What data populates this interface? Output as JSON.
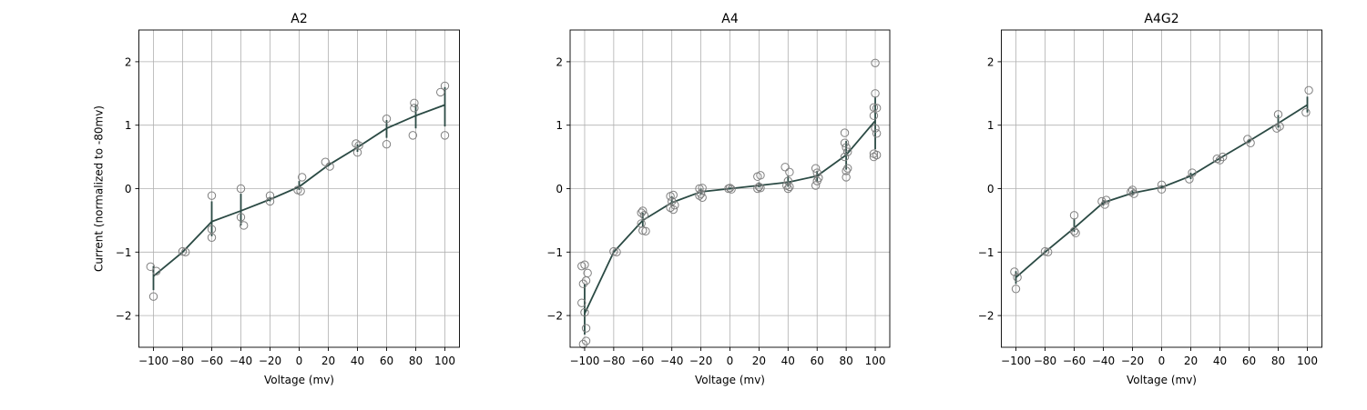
{
  "chart_data": [
    {
      "type": "scatter",
      "title": "A2",
      "xlabel": "Voltage (mv)",
      "ylabel": "Current (normalized to -80mv)",
      "xlim": [
        -110,
        110
      ],
      "ylim": [
        -2.5,
        2.5
      ],
      "xticks": [
        -100,
        -80,
        -60,
        -40,
        -20,
        0,
        20,
        40,
        60,
        80,
        100
      ],
      "xtick_labels": [
        "−100",
        "−80",
        "−60",
        "−40",
        "−20",
        "0",
        "20",
        "40",
        "60",
        "80",
        "100"
      ],
      "yticks": [
        -2,
        -1,
        0,
        1,
        2
      ],
      "ytick_labels": [
        "−2",
        "−1",
        "0",
        "1",
        "2"
      ],
      "grid": true,
      "mean": {
        "x": [
          -100,
          -80,
          -60,
          -40,
          -20,
          0,
          20,
          40,
          60,
          80,
          100
        ],
        "y": [
          -1.38,
          -1.0,
          -0.52,
          -0.35,
          -0.17,
          0.03,
          0.37,
          0.65,
          0.95,
          1.15,
          1.32
        ],
        "err_low": [
          -1.6,
          -1.0,
          -0.75,
          -0.58,
          -0.2,
          -0.02,
          0.35,
          0.58,
          0.8,
          0.95,
          0.98
        ],
        "err_high": [
          -1.22,
          -0.98,
          -0.2,
          -0.08,
          -0.13,
          0.12,
          0.4,
          0.7,
          1.08,
          1.32,
          1.6
        ]
      },
      "points": [
        {
          "x": -102,
          "y": -1.23
        },
        {
          "x": -100,
          "y": -1.7
        },
        {
          "x": -98,
          "y": -1.3
        },
        {
          "x": -80,
          "y": -0.99
        },
        {
          "x": -78,
          "y": -1.0
        },
        {
          "x": -60,
          "y": -0.11
        },
        {
          "x": -60,
          "y": -0.64
        },
        {
          "x": -60,
          "y": -0.77
        },
        {
          "x": -40,
          "y": 0.0
        },
        {
          "x": -40,
          "y": -0.45
        },
        {
          "x": -38,
          "y": -0.58
        },
        {
          "x": -20,
          "y": -0.11
        },
        {
          "x": -20,
          "y": -0.2
        },
        {
          "x": -1,
          "y": -0.02
        },
        {
          "x": 1,
          "y": -0.04
        },
        {
          "x": 2,
          "y": 0.18
        },
        {
          "x": 18,
          "y": 0.42
        },
        {
          "x": 21,
          "y": 0.35
        },
        {
          "x": 39,
          "y": 0.71
        },
        {
          "x": 40,
          "y": 0.57
        },
        {
          "x": 41,
          "y": 0.68
        },
        {
          "x": 60,
          "y": 1.1
        },
        {
          "x": 60,
          "y": 0.7
        },
        {
          "x": 78,
          "y": 0.84
        },
        {
          "x": 79,
          "y": 1.35
        },
        {
          "x": 79,
          "y": 1.27
        },
        {
          "x": 97,
          "y": 1.52
        },
        {
          "x": 100,
          "y": 1.62
        },
        {
          "x": 100,
          "y": 0.84
        }
      ]
    },
    {
      "type": "scatter",
      "title": "A4",
      "xlabel": "Voltage (mv)",
      "ylabel": "",
      "xlim": [
        -110,
        110
      ],
      "ylim": [
        -2.5,
        2.5
      ],
      "xticks": [
        -100,
        -80,
        -60,
        -40,
        -20,
        0,
        20,
        40,
        60,
        80,
        100
      ],
      "xtick_labels": [
        "−100",
        "−80",
        "−60",
        "−40",
        "−20",
        "0",
        "20",
        "40",
        "60",
        "80",
        "100"
      ],
      "yticks": [
        -2,
        -1,
        0,
        1,
        2
      ],
      "ytick_labels": [
        "−2",
        "−1",
        "0",
        "1",
        "2"
      ],
      "grid": true,
      "mean": {
        "x": [
          -100,
          -80,
          -60,
          -40,
          -20,
          0,
          20,
          40,
          60,
          80,
          100
        ],
        "y": [
          -1.97,
          -1.0,
          -0.5,
          -0.22,
          -0.05,
          0.0,
          0.05,
          0.1,
          0.2,
          0.53,
          1.07
        ],
        "err_low": [
          -2.3,
          -1.0,
          -0.6,
          -0.28,
          -0.1,
          -0.01,
          0.02,
          0.03,
          0.1,
          0.3,
          0.62
        ],
        "err_high": [
          -1.5,
          -0.99,
          -0.38,
          -0.12,
          0.0,
          0.02,
          0.1,
          0.2,
          0.28,
          0.75,
          1.45
        ]
      },
      "points": [
        {
          "x": -102,
          "y": -1.22
        },
        {
          "x": -100,
          "y": -1.2
        },
        {
          "x": -98,
          "y": -1.33
        },
        {
          "x": -101,
          "y": -1.5
        },
        {
          "x": -99,
          "y": -1.45
        },
        {
          "x": -102,
          "y": -1.8
        },
        {
          "x": -100,
          "y": -1.95
        },
        {
          "x": -99,
          "y": -2.2
        },
        {
          "x": -101,
          "y": -2.45
        },
        {
          "x": -99,
          "y": -2.4
        },
        {
          "x": -80,
          "y": -0.99
        },
        {
          "x": -78,
          "y": -1.0
        },
        {
          "x": -61,
          "y": -0.38
        },
        {
          "x": -60,
          "y": -0.35
        },
        {
          "x": -59,
          "y": -0.42
        },
        {
          "x": -61,
          "y": -0.55
        },
        {
          "x": -60,
          "y": -0.66
        },
        {
          "x": -58,
          "y": -0.67
        },
        {
          "x": -41,
          "y": -0.12
        },
        {
          "x": -39,
          "y": -0.1
        },
        {
          "x": -40,
          "y": -0.2
        },
        {
          "x": -41,
          "y": -0.3
        },
        {
          "x": -39,
          "y": -0.33
        },
        {
          "x": -38,
          "y": -0.26
        },
        {
          "x": -21,
          "y": 0.0
        },
        {
          "x": -19,
          "y": 0.01
        },
        {
          "x": -20,
          "y": -0.08
        },
        {
          "x": -21,
          "y": -0.11
        },
        {
          "x": -19,
          "y": -0.14
        },
        {
          "x": -1,
          "y": 0.0
        },
        {
          "x": 0,
          "y": 0.01
        },
        {
          "x": 1,
          "y": -0.01
        },
        {
          "x": 19,
          "y": 0.19
        },
        {
          "x": 21,
          "y": 0.21
        },
        {
          "x": 20,
          "y": 0.03
        },
        {
          "x": 19,
          "y": 0.0
        },
        {
          "x": 21,
          "y": 0.01
        },
        {
          "x": 38,
          "y": 0.34
        },
        {
          "x": 41,
          "y": 0.26
        },
        {
          "x": 40,
          "y": 0.12
        },
        {
          "x": 39,
          "y": 0.05
        },
        {
          "x": 41,
          "y": 0.03
        },
        {
          "x": 40,
          "y": 0.0
        },
        {
          "x": 59,
          "y": 0.32
        },
        {
          "x": 60,
          "y": 0.25
        },
        {
          "x": 61,
          "y": 0.17
        },
        {
          "x": 60,
          "y": 0.12
        },
        {
          "x": 59,
          "y": 0.05
        },
        {
          "x": 79,
          "y": 0.88
        },
        {
          "x": 79,
          "y": 0.72
        },
        {
          "x": 80,
          "y": 0.65
        },
        {
          "x": 81,
          "y": 0.58
        },
        {
          "x": 79,
          "y": 0.5
        },
        {
          "x": 81,
          "y": 0.32
        },
        {
          "x": 80,
          "y": 0.28
        },
        {
          "x": 80,
          "y": 0.18
        },
        {
          "x": 100,
          "y": 1.98
        },
        {
          "x": 100,
          "y": 1.5
        },
        {
          "x": 99,
          "y": 1.28
        },
        {
          "x": 101,
          "y": 1.27
        },
        {
          "x": 99,
          "y": 1.15
        },
        {
          "x": 100,
          "y": 0.95
        },
        {
          "x": 101,
          "y": 0.87
        },
        {
          "x": 99,
          "y": 0.55
        },
        {
          "x": 101,
          "y": 0.53
        },
        {
          "x": 99,
          "y": 0.5
        }
      ]
    },
    {
      "type": "scatter",
      "title": "A4G2",
      "xlabel": "Voltage (mv)",
      "ylabel": "",
      "xlim": [
        -110,
        110
      ],
      "ylim": [
        -2.5,
        2.5
      ],
      "xticks": [
        -100,
        -80,
        -60,
        -40,
        -20,
        0,
        20,
        40,
        60,
        80,
        100
      ],
      "xtick_labels": [
        "−100",
        "−80",
        "−60",
        "−40",
        "−20",
        "0",
        "20",
        "40",
        "60",
        "80",
        "100"
      ],
      "yticks": [
        -2,
        -1,
        0,
        1,
        2
      ],
      "ytick_labels": [
        "−2",
        "−1",
        "0",
        "1",
        "2"
      ],
      "grid": true,
      "mean": {
        "x": [
          -100,
          -80,
          -60,
          -40,
          -20,
          0,
          20,
          40,
          60,
          80,
          100
        ],
        "y": [
          -1.4,
          -1.0,
          -0.62,
          -0.22,
          -0.07,
          0.02,
          0.2,
          0.48,
          0.75,
          1.03,
          1.32
        ],
        "err_low": [
          -1.5,
          -1.0,
          -0.68,
          -0.27,
          -0.1,
          0.0,
          0.15,
          0.43,
          0.72,
          0.96,
          1.2
        ],
        "err_high": [
          -1.3,
          -0.99,
          -0.47,
          -0.18,
          -0.03,
          0.05,
          0.25,
          0.5,
          0.78,
          1.16,
          1.45
        ]
      },
      "points": [
        {
          "x": -101,
          "y": -1.31
        },
        {
          "x": -100,
          "y": -1.58
        },
        {
          "x": -99,
          "y": -1.4
        },
        {
          "x": -80,
          "y": -0.99
        },
        {
          "x": -78,
          "y": -1.0
        },
        {
          "x": -60,
          "y": -0.42
        },
        {
          "x": -60,
          "y": -0.67
        },
        {
          "x": -59,
          "y": -0.7
        },
        {
          "x": -41,
          "y": -0.2
        },
        {
          "x": -39,
          "y": -0.25
        },
        {
          "x": -38,
          "y": -0.18
        },
        {
          "x": -21,
          "y": -0.05
        },
        {
          "x": -19,
          "y": -0.08
        },
        {
          "x": -20,
          "y": -0.02
        },
        {
          "x": 0,
          "y": 0.06
        },
        {
          "x": 0,
          "y": -0.01
        },
        {
          "x": 19,
          "y": 0.15
        },
        {
          "x": 21,
          "y": 0.25
        },
        {
          "x": 38,
          "y": 0.47
        },
        {
          "x": 40,
          "y": 0.45
        },
        {
          "x": 42,
          "y": 0.5
        },
        {
          "x": 59,
          "y": 0.78
        },
        {
          "x": 61,
          "y": 0.72
        },
        {
          "x": 79,
          "y": 0.95
        },
        {
          "x": 80,
          "y": 1.17
        },
        {
          "x": 81,
          "y": 0.98
        },
        {
          "x": 99,
          "y": 1.2
        },
        {
          "x": 101,
          "y": 1.55
        }
      ]
    }
  ],
  "colors": {
    "line": "#2b4a44",
    "marker_edge": "#7f7f7f",
    "grid": "#b0b0b0",
    "axis": "#000000"
  }
}
